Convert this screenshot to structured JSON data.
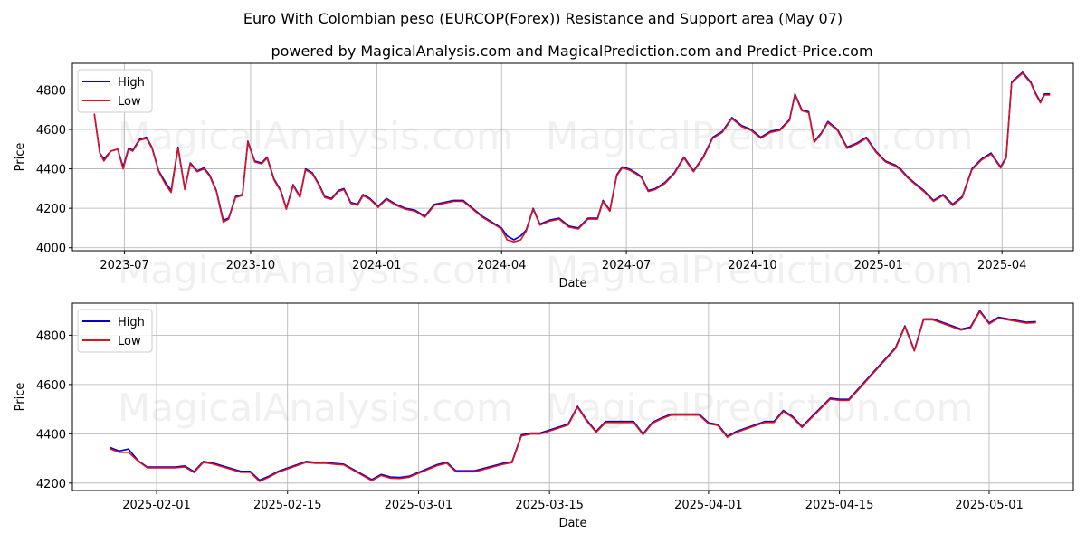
{
  "title": "Euro With Colombian peso (EURCOP(Forex)) Resistance and Support area (May 07)",
  "subtitle": "powered by MagicalAnalysis.com and MagicalPrediction.com and Predict-Price.com",
  "watermarks": [
    "MagicalAnalysis.com",
    "MagicalPrediction.com"
  ],
  "colors": {
    "high": "#0000cc",
    "low": "#dd1122",
    "grid": "#b0b0b0",
    "axes": "#000000"
  },
  "chart_data": [
    {
      "type": "line",
      "xlabel": "Date",
      "ylabel": "Price",
      "ylim": [
        3985,
        4935
      ],
      "xlim": [
        "2023-05-24",
        "2025-05-23"
      ],
      "x_ticks": [
        "2023-07",
        "2023-10",
        "2024-01",
        "2024-04",
        "2024-07",
        "2024-10",
        "2025-01",
        "2025-04"
      ],
      "y_ticks": [
        4000,
        4200,
        4400,
        4600,
        4800
      ],
      "grid": true,
      "legend": "top-left",
      "series": [
        {
          "name": "High",
          "x": [
            "2023-06-09",
            "2023-06-13",
            "2023-06-16",
            "2023-06-21",
            "2023-06-26",
            "2023-06-30",
            "2023-07-04",
            "2023-07-07",
            "2023-07-12",
            "2023-07-17",
            "2023-07-21",
            "2023-07-26",
            "2023-07-31",
            "2023-08-04",
            "2023-08-09",
            "2023-08-14",
            "2023-08-18",
            "2023-08-23",
            "2023-08-28",
            "2023-09-01",
            "2023-09-06",
            "2023-09-11",
            "2023-09-15",
            "2023-09-20",
            "2023-09-25",
            "2023-09-29",
            "2023-10-04",
            "2023-10-09",
            "2023-10-13",
            "2023-10-18",
            "2023-10-23",
            "2023-10-27",
            "2023-11-01",
            "2023-11-06",
            "2023-11-10",
            "2023-11-15",
            "2023-11-20",
            "2023-11-24",
            "2023-11-29",
            "2023-12-04",
            "2023-12-08",
            "2023-12-13",
            "2023-12-18",
            "2023-12-22",
            "2023-12-27",
            "2024-01-02",
            "2024-01-08",
            "2024-01-15",
            "2024-01-22",
            "2024-01-29",
            "2024-02-05",
            "2024-02-12",
            "2024-02-19",
            "2024-02-26",
            "2024-03-04",
            "2024-03-11",
            "2024-03-18",
            "2024-03-25",
            "2024-04-01",
            "2024-04-05",
            "2024-04-10",
            "2024-04-15",
            "2024-04-19",
            "2024-04-24",
            "2024-04-29",
            "2024-05-06",
            "2024-05-13",
            "2024-05-20",
            "2024-05-27",
            "2024-06-03",
            "2024-06-10",
            "2024-06-14",
            "2024-06-19",
            "2024-06-24",
            "2024-06-28",
            "2024-07-03",
            "2024-07-08",
            "2024-07-12",
            "2024-07-17",
            "2024-07-22",
            "2024-07-29",
            "2024-08-05",
            "2024-08-12",
            "2024-08-19",
            "2024-08-26",
            "2024-09-02",
            "2024-09-09",
            "2024-09-16",
            "2024-09-23",
            "2024-09-30",
            "2024-10-07",
            "2024-10-14",
            "2024-10-21",
            "2024-10-28",
            "2024-11-01",
            "2024-11-06",
            "2024-11-11",
            "2024-11-15",
            "2024-11-20",
            "2024-11-25",
            "2024-12-02",
            "2024-12-09",
            "2024-12-16",
            "2024-12-23",
            "2024-12-30",
            "2025-01-06",
            "2025-01-13",
            "2025-01-17",
            "2025-01-22",
            "2025-01-27",
            "2025-02-03",
            "2025-02-10",
            "2025-02-17",
            "2025-02-24",
            "2025-03-03",
            "2025-03-10",
            "2025-03-17",
            "2025-03-24",
            "2025-03-31",
            "2025-04-04",
            "2025-04-08",
            "2025-04-11",
            "2025-04-16",
            "2025-04-22",
            "2025-04-25",
            "2025-04-29",
            "2025-05-02",
            "2025-05-06"
          ],
          "values": [
            4680,
            4480,
            4450,
            4490,
            4500,
            4410,
            4505,
            4495,
            4550,
            4560,
            4510,
            4390,
            4330,
            4290,
            4510,
            4300,
            4430,
            4390,
            4405,
            4370,
            4290,
            4140,
            4150,
            4260,
            4270,
            4540,
            4440,
            4430,
            4460,
            4350,
            4290,
            4200,
            4320,
            4260,
            4400,
            4380,
            4320,
            4260,
            4250,
            4290,
            4300,
            4230,
            4220,
            4270,
            4250,
            4210,
            4250,
            4220,
            4200,
            4190,
            4160,
            4220,
            4230,
            4240,
            4240,
            4200,
            4160,
            4130,
            4100,
            4060,
            4040,
            4060,
            4090,
            4200,
            4120,
            4140,
            4150,
            4110,
            4100,
            4150,
            4150,
            4240,
            4190,
            4370,
            4410,
            4400,
            4380,
            4360,
            4290,
            4300,
            4330,
            4380,
            4460,
            4390,
            4460,
            4560,
            4590,
            4660,
            4620,
            4600,
            4560,
            4590,
            4600,
            4650,
            4780,
            4700,
            4690,
            4540,
            4580,
            4640,
            4600,
            4510,
            4530,
            4560,
            4490,
            4440,
            4420,
            4400,
            4360,
            4330,
            4290,
            4240,
            4270,
            4220,
            4260,
            4400,
            4450,
            4480,
            4410,
            4460,
            4840,
            4860,
            4890,
            4840,
            4790,
            4740,
            4780,
            4780
          ]
        },
        {
          "name": "Low",
          "x": [
            "2023-06-09",
            "2023-06-13",
            "2023-06-16",
            "2023-06-21",
            "2023-06-26",
            "2023-06-30",
            "2023-07-04",
            "2023-07-07",
            "2023-07-12",
            "2023-07-17",
            "2023-07-21",
            "2023-07-26",
            "2023-07-31",
            "2023-08-04",
            "2023-08-09",
            "2023-08-14",
            "2023-08-18",
            "2023-08-23",
            "2023-08-28",
            "2023-09-01",
            "2023-09-06",
            "2023-09-11",
            "2023-09-15",
            "2023-09-20",
            "2023-09-25",
            "2023-09-29",
            "2023-10-04",
            "2023-10-09",
            "2023-10-13",
            "2023-10-18",
            "2023-10-23",
            "2023-10-27",
            "2023-11-01",
            "2023-11-06",
            "2023-11-10",
            "2023-11-15",
            "2023-11-20",
            "2023-11-24",
            "2023-11-29",
            "2023-12-04",
            "2023-12-08",
            "2023-12-13",
            "2023-12-18",
            "2023-12-22",
            "2023-12-27",
            "2024-01-02",
            "2024-01-08",
            "2024-01-15",
            "2024-01-22",
            "2024-01-29",
            "2024-02-05",
            "2024-02-12",
            "2024-02-19",
            "2024-02-26",
            "2024-03-04",
            "2024-03-11",
            "2024-03-18",
            "2024-03-25",
            "2024-04-01",
            "2024-04-05",
            "2024-04-10",
            "2024-04-15",
            "2024-04-19",
            "2024-04-24",
            "2024-04-29",
            "2024-05-06",
            "2024-05-13",
            "2024-05-20",
            "2024-05-27",
            "2024-06-03",
            "2024-06-10",
            "2024-06-14",
            "2024-06-19",
            "2024-06-24",
            "2024-06-28",
            "2024-07-03",
            "2024-07-08",
            "2024-07-12",
            "2024-07-17",
            "2024-07-22",
            "2024-07-29",
            "2024-08-05",
            "2024-08-12",
            "2024-08-19",
            "2024-08-26",
            "2024-09-02",
            "2024-09-09",
            "2024-09-16",
            "2024-09-23",
            "2024-09-30",
            "2024-10-07",
            "2024-10-14",
            "2024-10-21",
            "2024-10-28",
            "2024-11-01",
            "2024-11-06",
            "2024-11-11",
            "2024-11-15",
            "2024-11-20",
            "2024-11-25",
            "2024-12-02",
            "2024-12-09",
            "2024-12-16",
            "2024-12-23",
            "2024-12-30",
            "2025-01-06",
            "2025-01-13",
            "2025-01-17",
            "2025-01-22",
            "2025-01-27",
            "2025-02-03",
            "2025-02-10",
            "2025-02-17",
            "2025-02-24",
            "2025-03-03",
            "2025-03-10",
            "2025-03-17",
            "2025-03-24",
            "2025-03-31",
            "2025-04-04",
            "2025-04-08",
            "2025-04-11",
            "2025-04-16",
            "2025-04-22",
            "2025-04-25",
            "2025-04-29",
            "2025-05-02",
            "2025-05-06"
          ],
          "values": [
            4680,
            4480,
            4440,
            4490,
            4500,
            4400,
            4500,
            4490,
            4545,
            4555,
            4505,
            4385,
            4320,
            4280,
            4505,
            4295,
            4425,
            4385,
            4400,
            4365,
            4285,
            4130,
            4145,
            4255,
            4265,
            4535,
            4435,
            4425,
            4455,
            4345,
            4285,
            4195,
            4315,
            4255,
            4395,
            4375,
            4315,
            4255,
            4245,
            4285,
            4295,
            4225,
            4215,
            4265,
            4245,
            4205,
            4245,
            4215,
            4195,
            4185,
            4155,
            4215,
            4225,
            4235,
            4235,
            4195,
            4155,
            4125,
            4095,
            4040,
            4030,
            4040,
            4085,
            4195,
            4115,
            4135,
            4145,
            4105,
            4095,
            4145,
            4145,
            4235,
            4185,
            4365,
            4405,
            4395,
            4375,
            4355,
            4285,
            4295,
            4325,
            4375,
            4455,
            4385,
            4455,
            4555,
            4585,
            4655,
            4615,
            4595,
            4555,
            4585,
            4595,
            4645,
            4775,
            4695,
            4685,
            4535,
            4575,
            4635,
            4595,
            4505,
            4525,
            4555,
            4485,
            4435,
            4415,
            4395,
            4355,
            4325,
            4285,
            4235,
            4265,
            4215,
            4255,
            4395,
            4445,
            4475,
            4405,
            4455,
            4835,
            4855,
            4885,
            4835,
            4785,
            4735,
            4775,
            4775
          ]
        }
      ]
    },
    {
      "type": "line",
      "xlabel": "Date",
      "ylabel": "Price",
      "ylim": [
        4170,
        4930
      ],
      "xlim": [
        "2025-01-23",
        "2025-05-10"
      ],
      "x_ticks": [
        "2025-02-01",
        "2025-02-15",
        "2025-03-01",
        "2025-03-15",
        "2025-04-01",
        "2025-04-15",
        "2025-05-01"
      ],
      "y_ticks": [
        4200,
        4400,
        4600,
        4800
      ],
      "grid": true,
      "legend": "top-left",
      "series": [
        {
          "name": "High",
          "x": [
            "2025-01-27",
            "2025-01-28",
            "2025-01-29",
            "2025-01-30",
            "2025-01-31",
            "2025-02-03",
            "2025-02-04",
            "2025-02-05",
            "2025-02-06",
            "2025-02-07",
            "2025-02-10",
            "2025-02-11",
            "2025-02-12",
            "2025-02-13",
            "2025-02-14",
            "2025-02-17",
            "2025-02-18",
            "2025-02-19",
            "2025-02-20",
            "2025-02-21",
            "2025-02-24",
            "2025-02-25",
            "2025-02-26",
            "2025-02-27",
            "2025-02-28",
            "2025-03-03",
            "2025-03-04",
            "2025-03-05",
            "2025-03-06",
            "2025-03-07",
            "2025-03-10",
            "2025-03-11",
            "2025-03-12",
            "2025-03-13",
            "2025-03-14",
            "2025-03-17",
            "2025-03-18",
            "2025-03-19",
            "2025-03-20",
            "2025-03-21",
            "2025-03-24",
            "2025-03-25",
            "2025-03-26",
            "2025-03-27",
            "2025-03-28",
            "2025-03-31",
            "2025-04-01",
            "2025-04-02",
            "2025-04-03",
            "2025-04-04",
            "2025-04-07",
            "2025-04-08",
            "2025-04-09",
            "2025-04-10",
            "2025-04-11",
            "2025-04-14",
            "2025-04-15",
            "2025-04-16",
            "2025-04-21",
            "2025-04-22",
            "2025-04-23",
            "2025-04-24",
            "2025-04-25",
            "2025-04-28",
            "2025-04-29",
            "2025-04-30",
            "2025-05-01",
            "2025-05-02",
            "2025-05-05",
            "2025-05-06"
          ],
          "values": [
            4345,
            4330,
            4338,
            4292,
            4265,
            4265,
            4270,
            4247,
            4288,
            4282,
            4248,
            4248,
            4212,
            4228,
            4248,
            4288,
            4284,
            4285,
            4280,
            4277,
            4214,
            4235,
            4225,
            4223,
            4228,
            4275,
            4285,
            4250,
            4250,
            4250,
            4280,
            4287,
            4395,
            4403,
            4403,
            4440,
            4512,
            4455,
            4410,
            4450,
            4450,
            4400,
            4447,
            4465,
            4480,
            4480,
            4445,
            4438,
            4390,
            4410,
            4450,
            4450,
            4495,
            4470,
            4430,
            4545,
            4540,
            4540,
            4750,
            4838,
            4740,
            4866,
            4866,
            4825,
            4833,
            4900,
            4850,
            4873,
            4853,
            4855
          ]
        },
        {
          "name": "Low",
          "x": [
            "2025-01-27",
            "2025-01-28",
            "2025-01-29",
            "2025-01-30",
            "2025-01-31",
            "2025-02-03",
            "2025-02-04",
            "2025-02-05",
            "2025-02-06",
            "2025-02-07",
            "2025-02-10",
            "2025-02-11",
            "2025-02-12",
            "2025-02-13",
            "2025-02-14",
            "2025-02-17",
            "2025-02-18",
            "2025-02-19",
            "2025-02-20",
            "2025-02-21",
            "2025-02-24",
            "2025-02-25",
            "2025-02-26",
            "2025-02-27",
            "2025-02-28",
            "2025-03-03",
            "2025-03-04",
            "2025-03-05",
            "2025-03-06",
            "2025-03-07",
            "2025-03-10",
            "2025-03-11",
            "2025-03-12",
            "2025-03-13",
            "2025-03-14",
            "2025-03-17",
            "2025-03-18",
            "2025-03-19",
            "2025-03-20",
            "2025-03-21",
            "2025-03-24",
            "2025-03-25",
            "2025-03-26",
            "2025-03-27",
            "2025-03-28",
            "2025-03-31",
            "2025-04-01",
            "2025-04-02",
            "2025-04-03",
            "2025-04-04",
            "2025-04-07",
            "2025-04-08",
            "2025-04-09",
            "2025-04-10",
            "2025-04-11",
            "2025-04-14",
            "2025-04-15",
            "2025-04-16",
            "2025-04-21",
            "2025-04-22",
            "2025-04-23",
            "2025-04-24",
            "2025-04-25",
            "2025-04-28",
            "2025-04-29",
            "2025-04-30",
            "2025-05-01",
            "2025-05-02",
            "2025-05-05",
            "2025-05-06"
          ],
          "values": [
            4340,
            4325,
            4325,
            4290,
            4262,
            4262,
            4266,
            4243,
            4284,
            4278,
            4244,
            4244,
            4207,
            4224,
            4244,
            4284,
            4280,
            4281,
            4277,
            4274,
            4210,
            4231,
            4220,
            4219,
            4224,
            4271,
            4281,
            4246,
            4246,
            4246,
            4276,
            4283,
            4391,
            4399,
            4399,
            4436,
            4508,
            4451,
            4406,
            4446,
            4446,
            4396,
            4443,
            4461,
            4476,
            4476,
            4441,
            4434,
            4386,
            4406,
            4446,
            4446,
            4491,
            4466,
            4426,
            4541,
            4536,
            4536,
            4746,
            4834,
            4736,
            4862,
            4862,
            4821,
            4829,
            4896,
            4846,
            4869,
            4849,
            4851
          ]
        }
      ]
    }
  ]
}
